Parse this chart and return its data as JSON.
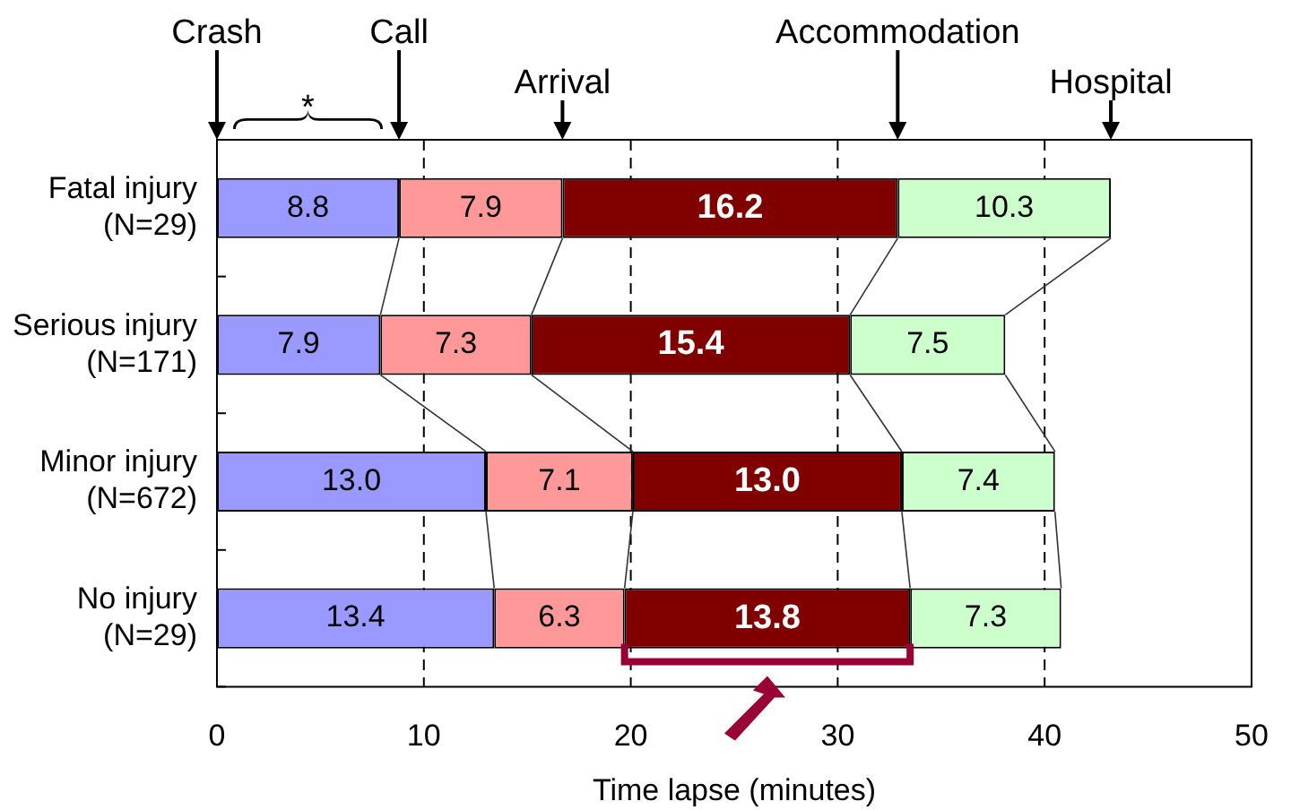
{
  "chart_data": {
    "type": "bar",
    "orientation": "horizontal",
    "stacked": true,
    "categories": [
      "Fatal injury\n(N=29)",
      "Serious injury\n(N=171)",
      "Minor injury\n(N=672)",
      "No injury\n(N=29)"
    ],
    "series": [
      {
        "color": "#9999ff",
        "values": [
          8.8,
          7.9,
          13.0,
          13.4
        ],
        "value_labels": [
          "8.8",
          "7.9",
          "13.0",
          "13.4"
        ]
      },
      {
        "color": "#ff9999",
        "values": [
          7.9,
          7.3,
          7.1,
          6.3
        ],
        "value_labels": [
          "7.9",
          "7.3",
          "7.1",
          "6.3"
        ]
      },
      {
        "color": "#800000",
        "values": [
          16.2,
          15.4,
          13.0,
          13.8
        ],
        "value_labels": [
          "16.2",
          "15.4",
          "13.0",
          "13.8"
        ]
      },
      {
        "color": "#ccffcc",
        "values": [
          10.3,
          7.5,
          7.4,
          7.3
        ],
        "value_labels": [
          "10.3",
          "7.5",
          "7.4",
          "7.3"
        ]
      }
    ],
    "xlim": [
      0,
      50
    ],
    "xticks": [
      0,
      10,
      20,
      30,
      40,
      50
    ],
    "xlabel": "Time lapse (minutes)",
    "grid": "x",
    "annotations": [
      "Crash",
      "Call",
      "Arrival",
      "Accommodation",
      "Hospital",
      "*"
    ]
  }
}
